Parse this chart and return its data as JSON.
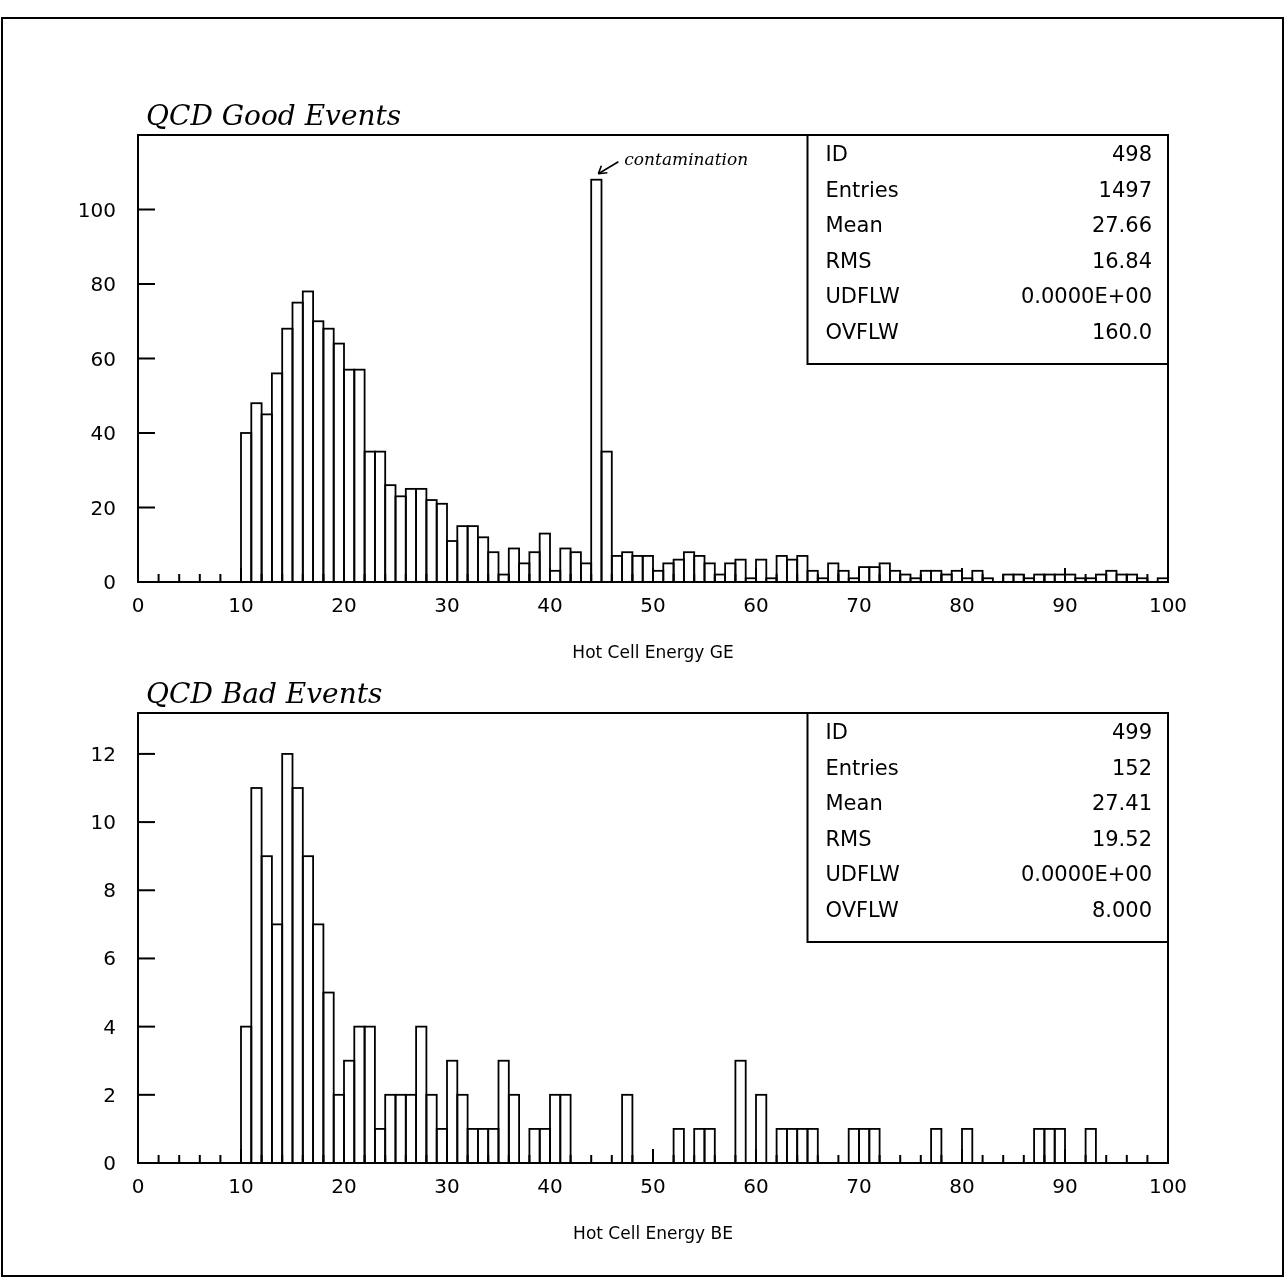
{
  "chart_data": [
    {
      "type": "histogram",
      "title": "QCD Good Events",
      "xlabel": "Hot Cell Energy GE",
      "color": "#000000",
      "bins": [
        0,
        1,
        2,
        3,
        4,
        5,
        6,
        7,
        8,
        9,
        10,
        11,
        12,
        13,
        14,
        15,
        16,
        17,
        18,
        19,
        20,
        21,
        22,
        23,
        24,
        25,
        26,
        27,
        28,
        29,
        30,
        31,
        32,
        33,
        34,
        35,
        36,
        37,
        38,
        39,
        40,
        41,
        42,
        43,
        44,
        45,
        46,
        47,
        48,
        49,
        50,
        51,
        52,
        53,
        54,
        55,
        56,
        57,
        58,
        59,
        60,
        61,
        62,
        63,
        64,
        65,
        66,
        67,
        68,
        69,
        70,
        71,
        72,
        73,
        74,
        75,
        76,
        77,
        78,
        79,
        80,
        81,
        82,
        83,
        84,
        85,
        86,
        87,
        88,
        89,
        90,
        91,
        92,
        93,
        94,
        95,
        96,
        97,
        98,
        99,
        100
      ],
      "values": [
        0,
        0,
        0,
        0,
        0,
        0,
        0,
        0,
        0,
        0,
        40,
        48,
        45,
        56,
        68,
        75,
        78,
        70,
        68,
        64,
        57,
        57,
        35,
        35,
        26,
        23,
        25,
        25,
        22,
        21,
        11,
        15,
        15,
        12,
        8,
        2,
        9,
        5,
        8,
        13,
        3,
        9,
        8,
        5,
        108,
        35,
        7,
        8,
        7,
        7,
        3,
        5,
        6,
        8,
        7,
        5,
        2,
        5,
        6,
        1,
        6,
        1,
        7,
        6,
        7,
        3,
        1,
        5,
        3,
        1,
        4,
        4,
        5,
        3,
        2,
        1,
        3,
        3,
        2,
        3,
        1,
        3,
        1,
        0,
        2,
        2,
        1,
        2,
        2,
        2,
        2,
        1,
        1,
        2,
        3,
        2,
        2,
        1,
        0,
        1
      ],
      "xlim": [
        0,
        100
      ],
      "ylim": [
        0,
        120
      ],
      "xticks": [
        0,
        {
          "value": 2,
          "label": null
        },
        {
          "value": 4,
          "label": null
        },
        {
          "value": 6,
          "label": null
        },
        {
          "value": 8,
          "label": null
        },
        10,
        {
          "value": 12,
          "label": null
        },
        {
          "value": 14,
          "label": null
        },
        {
          "value": 16,
          "label": null
        },
        {
          "value": 18,
          "label": null
        },
        20,
        {
          "value": 22,
          "label": null
        },
        {
          "value": 24,
          "label": null
        },
        {
          "value": 26,
          "label": null
        },
        {
          "value": 28,
          "label": null
        },
        30,
        {
          "value": 32,
          "label": null
        },
        {
          "value": 34,
          "label": null
        },
        {
          "value": 36,
          "label": null
        },
        {
          "value": 38,
          "label": null
        },
        40,
        {
          "value": 42,
          "label": null
        },
        {
          "value": 44,
          "label": null
        },
        {
          "value": 46,
          "label": null
        },
        {
          "value": 48,
          "label": null
        },
        50,
        {
          "value": 52,
          "label": null
        },
        {
          "value": 54,
          "label": null
        },
        {
          "value": 56,
          "label": null
        },
        {
          "value": 58,
          "label": null
        },
        60,
        {
          "value": 62,
          "label": null
        },
        {
          "value": 64,
          "label": null
        },
        {
          "value": 66,
          "label": null
        },
        {
          "value": 68,
          "label": null
        },
        70,
        {
          "value": 72,
          "label": null
        },
        {
          "value": 74,
          "label": null
        },
        {
          "value": 76,
          "label": null
        },
        {
          "value": 78,
          "label": null
        },
        80,
        {
          "value": 82,
          "label": null
        },
        {
          "value": 84,
          "label": null
        },
        {
          "value": 86,
          "label": null
        },
        {
          "value": 88,
          "label": null
        },
        90,
        {
          "value": 92,
          "label": null
        },
        {
          "value": 94,
          "label": null
        },
        {
          "value": 96,
          "label": null
        },
        {
          "value": 98,
          "label": null
        },
        100
      ],
      "yticks": [
        0,
        20,
        40,
        60,
        80,
        100
      ],
      "annotations": [
        {
          "text": "contamination"
        },
        "ID",
        "498",
        "Entries",
        "1497",
        "Mean",
        "27.66",
        "RMS",
        "16.84",
        "UDFLW",
        "0.0000E+00",
        "OVFLW",
        "160.0"
      ]
    },
    {
      "type": "histogram",
      "title": "QCD Bad Events",
      "xlabel": "Hot Cell Energy BE",
      "color": "#000000",
      "bins": [
        0,
        1,
        2,
        3,
        4,
        5,
        6,
        7,
        8,
        9,
        10,
        11,
        12,
        13,
        14,
        15,
        16,
        17,
        18,
        19,
        20,
        21,
        22,
        23,
        24,
        25,
        26,
        27,
        28,
        29,
        30,
        31,
        32,
        33,
        34,
        35,
        36,
        37,
        38,
        39,
        40,
        41,
        42,
        43,
        44,
        45,
        46,
        47,
        48,
        49,
        50,
        51,
        52,
        53,
        54,
        55,
        56,
        57,
        58,
        59,
        60,
        61,
        62,
        63,
        64,
        65,
        66,
        67,
        68,
        69,
        70,
        71,
        72,
        73,
        74,
        75,
        76,
        77,
        78,
        79,
        80,
        81,
        82,
        83,
        84,
        85,
        86,
        87,
        88,
        89,
        90,
        91,
        92,
        93,
        94,
        95,
        96,
        97,
        98,
        99,
        100
      ],
      "values": [
        0,
        0,
        0,
        0,
        0,
        0,
        0,
        0,
        0,
        0,
        4,
        11,
        9,
        7,
        12,
        11,
        9,
        7,
        5,
        2,
        3,
        4,
        4,
        1,
        2,
        2,
        2,
        4,
        2,
        1,
        3,
        2,
        1,
        1,
        1,
        3,
        2,
        0,
        1,
        1,
        2,
        2,
        0,
        0,
        0,
        0,
        0,
        2,
        0,
        0,
        0,
        0,
        1,
        0,
        1,
        1,
        0,
        0,
        3,
        0,
        2,
        0,
        1,
        1,
        1,
        1,
        0,
        0,
        0,
        1,
        1,
        1,
        0,
        0,
        0,
        0,
        0,
        1,
        0,
        0,
        1,
        0,
        0,
        0,
        0,
        0,
        0,
        1,
        1,
        1,
        0,
        0,
        1,
        0,
        0,
        0,
        0,
        0,
        0,
        0
      ],
      "xlim": [
        0,
        100
      ],
      "ylim": [
        0,
        13.2
      ],
      "xticks": [
        0,
        {
          "value": 2,
          "label": null
        },
        {
          "value": 4,
          "label": null
        },
        {
          "value": 6,
          "label": null
        },
        {
          "value": 8,
          "label": null
        },
        10,
        {
          "value": 12,
          "label": null
        },
        {
          "value": 14,
          "label": null
        },
        {
          "value": 16,
          "label": null
        },
        {
          "value": 18,
          "label": null
        },
        20,
        {
          "value": 22,
          "label": null
        },
        {
          "value": 24,
          "label": null
        },
        {
          "value": 26,
          "label": null
        },
        {
          "value": 28,
          "label": null
        },
        30,
        {
          "value": 32,
          "label": null
        },
        {
          "value": 34,
          "label": null
        },
        {
          "value": 36,
          "label": null
        },
        {
          "value": 38,
          "label": null
        },
        40,
        {
          "value": 42,
          "label": null
        },
        {
          "value": 44,
          "label": null
        },
        {
          "value": 46,
          "label": null
        },
        {
          "value": 48,
          "label": null
        },
        50,
        {
          "value": 52,
          "label": null
        },
        {
          "value": 54,
          "label": null
        },
        {
          "value": 56,
          "label": null
        },
        {
          "value": 58,
          "label": null
        },
        60,
        {
          "value": 62,
          "label": null
        },
        {
          "value": 64,
          "label": null
        },
        {
          "value": 66,
          "label": null
        },
        {
          "value": 68,
          "label": null
        },
        70,
        {
          "value": 72,
          "label": null
        },
        {
          "value": 74,
          "label": null
        },
        {
          "value": 76,
          "label": null
        },
        {
          "value": 78,
          "label": null
        },
        80,
        {
          "value": 82,
          "label": null
        },
        {
          "value": 84,
          "label": null
        },
        {
          "value": 86,
          "label": null
        },
        {
          "value": 88,
          "label": null
        },
        90,
        {
          "value": 92,
          "label": null
        },
        {
          "value": 94,
          "label": null
        },
        {
          "value": 96,
          "label": null
        },
        {
          "value": 98,
          "label": null
        },
        100
      ],
      "yticks": [
        0,
        2,
        4,
        6,
        8,
        10,
        12
      ],
      "annotations": [
        "ID",
        "499",
        "Entries",
        "152",
        "Mean",
        "27.41",
        "RMS",
        "19.52",
        "UDFLW",
        "0.0000E+00",
        "OVFLW",
        "8.000"
      ]
    }
  ]
}
